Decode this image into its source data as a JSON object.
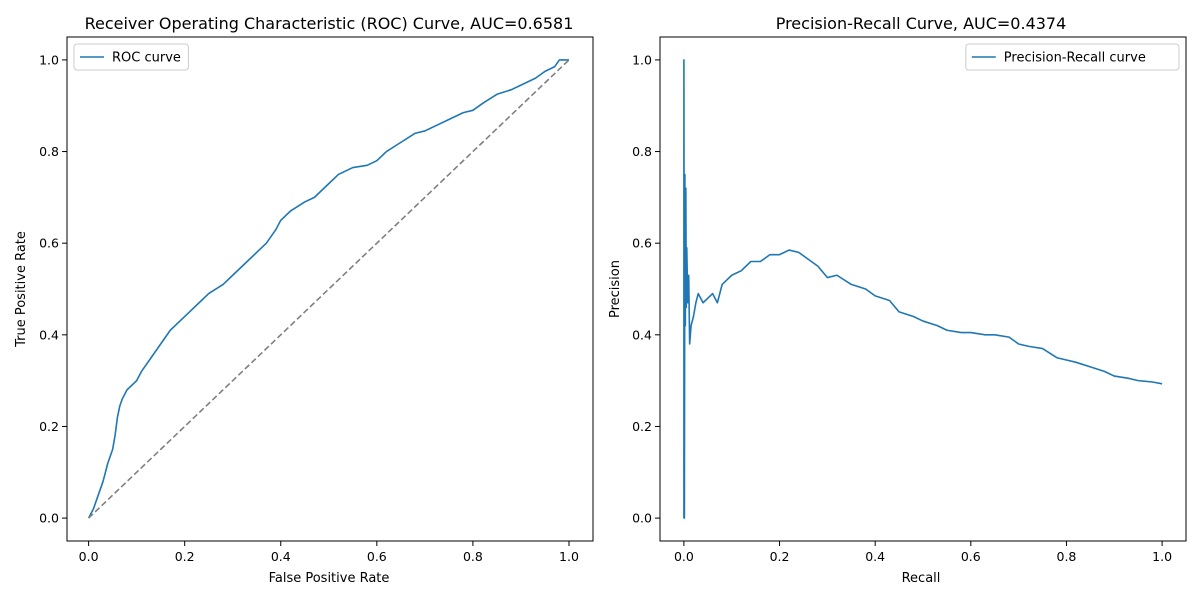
{
  "chart_data": [
    {
      "type": "line",
      "title": "Receiver Operating Characteristic (ROC) Curve, AUC=0.6581",
      "xlabel": "False Positive Rate",
      "ylabel": "True Positive Rate",
      "xlim": [
        -0.045,
        1.05
      ],
      "ylim": [
        -0.05,
        1.05
      ],
      "xticks": [
        0.0,
        0.2,
        0.4,
        0.6,
        0.8,
        1.0
      ],
      "yticks": [
        0.0,
        0.2,
        0.4,
        0.6,
        0.8,
        1.0
      ],
      "xtick_labels": [
        "0.0",
        "0.2",
        "0.4",
        "0.6",
        "0.8",
        "1.0"
      ],
      "ytick_labels": [
        "0.0",
        "0.2",
        "0.4",
        "0.6",
        "0.8",
        "1.0"
      ],
      "grid": false,
      "legend_position": "upper left",
      "series": [
        {
          "name": "ROC curve",
          "color": "#1f77b4",
          "style": "solid",
          "x": [
            0.0,
            0.01,
            0.02,
            0.03,
            0.04,
            0.05,
            0.055,
            0.06,
            0.065,
            0.07,
            0.08,
            0.1,
            0.11,
            0.13,
            0.15,
            0.17,
            0.19,
            0.21,
            0.23,
            0.25,
            0.28,
            0.3,
            0.33,
            0.35,
            0.37,
            0.39,
            0.4,
            0.42,
            0.45,
            0.47,
            0.5,
            0.52,
            0.55,
            0.58,
            0.6,
            0.62,
            0.65,
            0.68,
            0.7,
            0.73,
            0.75,
            0.78,
            0.8,
            0.82,
            0.85,
            0.88,
            0.9,
            0.93,
            0.95,
            0.97,
            0.98,
            1.0
          ],
          "y": [
            0.0,
            0.02,
            0.05,
            0.08,
            0.12,
            0.15,
            0.18,
            0.22,
            0.245,
            0.26,
            0.28,
            0.3,
            0.32,
            0.35,
            0.38,
            0.41,
            0.43,
            0.45,
            0.47,
            0.49,
            0.51,
            0.53,
            0.56,
            0.58,
            0.6,
            0.63,
            0.65,
            0.67,
            0.69,
            0.7,
            0.73,
            0.75,
            0.765,
            0.77,
            0.78,
            0.8,
            0.82,
            0.84,
            0.845,
            0.86,
            0.87,
            0.885,
            0.89,
            0.905,
            0.925,
            0.935,
            0.945,
            0.96,
            0.975,
            0.985,
            1.0,
            1.0
          ]
        },
        {
          "name": "",
          "color": "#808080",
          "style": "dashed",
          "x": [
            0.0,
            1.0
          ],
          "y": [
            0.0,
            1.0
          ]
        }
      ]
    },
    {
      "type": "line",
      "title": "Precision-Recall Curve, AUC=0.4374",
      "xlabel": "Recall",
      "ylabel": "Precision",
      "xlim": [
        -0.05,
        1.05
      ],
      "ylim": [
        -0.05,
        1.05
      ],
      "xticks": [
        0.0,
        0.2,
        0.4,
        0.6,
        0.8,
        1.0
      ],
      "yticks": [
        0.0,
        0.2,
        0.4,
        0.6,
        0.8,
        1.0
      ],
      "xtick_labels": [
        "0.0",
        "0.2",
        "0.4",
        "0.6",
        "0.8",
        "1.0"
      ],
      "ytick_labels": [
        "0.0",
        "0.2",
        "0.4",
        "0.6",
        "0.8",
        "1.0"
      ],
      "grid": false,
      "legend_position": "upper right",
      "series": [
        {
          "name": "Precision-Recall curve",
          "color": "#1f77b4",
          "style": "solid",
          "x": [
            0.0,
            0.0,
            0.001,
            0.002,
            0.003,
            0.004,
            0.005,
            0.006,
            0.008,
            0.01,
            0.012,
            0.015,
            0.02,
            0.025,
            0.03,
            0.04,
            0.05,
            0.06,
            0.07,
            0.08,
            0.09,
            0.1,
            0.12,
            0.14,
            0.16,
            0.18,
            0.2,
            0.22,
            0.24,
            0.26,
            0.28,
            0.3,
            0.32,
            0.35,
            0.38,
            0.4,
            0.43,
            0.45,
            0.48,
            0.5,
            0.53,
            0.55,
            0.58,
            0.6,
            0.63,
            0.65,
            0.68,
            0.7,
            0.72,
            0.75,
            0.78,
            0.8,
            0.82,
            0.85,
            0.88,
            0.9,
            0.93,
            0.95,
            0.98,
            1.0
          ],
          "y": [
            0.0,
            1.0,
            0.0,
            0.75,
            0.42,
            0.72,
            0.46,
            0.59,
            0.47,
            0.53,
            0.38,
            0.42,
            0.44,
            0.47,
            0.49,
            0.47,
            0.48,
            0.49,
            0.47,
            0.51,
            0.52,
            0.53,
            0.54,
            0.56,
            0.56,
            0.575,
            0.575,
            0.585,
            0.58,
            0.565,
            0.55,
            0.525,
            0.53,
            0.51,
            0.5,
            0.485,
            0.475,
            0.45,
            0.44,
            0.43,
            0.42,
            0.41,
            0.405,
            0.405,
            0.4,
            0.4,
            0.395,
            0.38,
            0.375,
            0.37,
            0.35,
            0.345,
            0.34,
            0.33,
            0.32,
            0.31,
            0.305,
            0.3,
            0.297,
            0.293
          ]
        }
      ]
    }
  ]
}
